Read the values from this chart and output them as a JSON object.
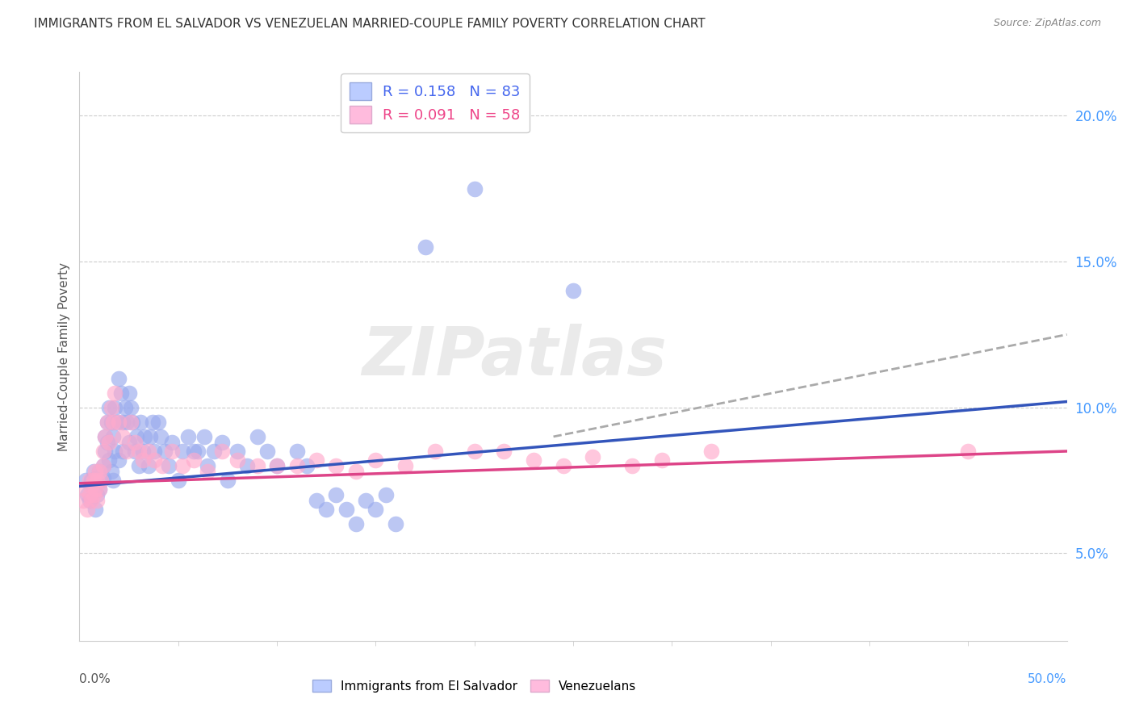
{
  "title": "IMMIGRANTS FROM EL SALVADOR VS VENEZUELAN MARRIED-COUPLE FAMILY POVERTY CORRELATION CHART",
  "source": "Source: ZipAtlas.com",
  "ylabel": "Married-Couple Family Poverty",
  "right_yticks": [
    "5.0%",
    "10.0%",
    "15.0%",
    "20.0%"
  ],
  "right_ytick_values": [
    0.05,
    0.1,
    0.15,
    0.2
  ],
  "xlim": [
    0.0,
    0.5
  ],
  "ylim": [
    0.02,
    0.215
  ],
  "legend_entries_top": [
    "R = 0.158   N = 83",
    "R = 0.091   N = 58"
  ],
  "legend_entries_bottom": [
    "Immigrants from El Salvador",
    "Venezuelans"
  ],
  "el_salvador_color": "#99aaee",
  "venezuelan_color": "#ffaacc",
  "blue_line_color": "#3355bb",
  "pink_line_color": "#dd4488",
  "dashed_color": "#aaaaaa",
  "watermark": "ZIPatlas",
  "blue_trend": [
    0.0,
    0.073,
    0.5,
    0.102
  ],
  "pink_trend": [
    0.0,
    0.074,
    0.5,
    0.085
  ],
  "dashed_trend": [
    0.24,
    0.09,
    0.5,
    0.125
  ],
  "es_x": [
    0.003,
    0.004,
    0.005,
    0.006,
    0.007,
    0.007,
    0.008,
    0.008,
    0.009,
    0.009,
    0.01,
    0.01,
    0.011,
    0.012,
    0.012,
    0.013,
    0.013,
    0.014,
    0.014,
    0.015,
    0.015,
    0.016,
    0.016,
    0.017,
    0.017,
    0.018,
    0.018,
    0.019,
    0.02,
    0.02,
    0.021,
    0.022,
    0.022,
    0.023,
    0.024,
    0.025,
    0.025,
    0.026,
    0.027,
    0.028,
    0.029,
    0.03,
    0.031,
    0.032,
    0.033,
    0.035,
    0.036,
    0.037,
    0.038,
    0.04,
    0.041,
    0.043,
    0.045,
    0.047,
    0.05,
    0.052,
    0.055,
    0.058,
    0.06,
    0.063,
    0.065,
    0.068,
    0.072,
    0.075,
    0.08,
    0.085,
    0.09,
    0.095,
    0.1,
    0.11,
    0.115,
    0.12,
    0.125,
    0.13,
    0.135,
    0.14,
    0.145,
    0.15,
    0.155,
    0.16,
    0.175,
    0.2,
    0.25
  ],
  "es_y": [
    0.075,
    0.07,
    0.068,
    0.075,
    0.072,
    0.078,
    0.065,
    0.073,
    0.07,
    0.076,
    0.072,
    0.078,
    0.075,
    0.08,
    0.076,
    0.085,
    0.09,
    0.088,
    0.095,
    0.082,
    0.1,
    0.078,
    0.095,
    0.075,
    0.09,
    0.085,
    0.1,
    0.095,
    0.082,
    0.11,
    0.105,
    0.085,
    0.095,
    0.1,
    0.095,
    0.088,
    0.105,
    0.1,
    0.095,
    0.085,
    0.09,
    0.08,
    0.095,
    0.085,
    0.09,
    0.08,
    0.09,
    0.095,
    0.085,
    0.095,
    0.09,
    0.085,
    0.08,
    0.088,
    0.075,
    0.085,
    0.09,
    0.085,
    0.085,
    0.09,
    0.08,
    0.085,
    0.088,
    0.075,
    0.085,
    0.08,
    0.09,
    0.085,
    0.08,
    0.085,
    0.08,
    0.068,
    0.065,
    0.07,
    0.065,
    0.06,
    0.068,
    0.065,
    0.07,
    0.06,
    0.155,
    0.175,
    0.14
  ],
  "vz_x": [
    0.002,
    0.003,
    0.004,
    0.005,
    0.005,
    0.006,
    0.006,
    0.007,
    0.007,
    0.008,
    0.008,
    0.009,
    0.009,
    0.01,
    0.01,
    0.011,
    0.012,
    0.012,
    0.013,
    0.014,
    0.015,
    0.016,
    0.017,
    0.018,
    0.02,
    0.022,
    0.024,
    0.026,
    0.028,
    0.03,
    0.032,
    0.035,
    0.038,
    0.042,
    0.047,
    0.052,
    0.058,
    0.065,
    0.072,
    0.08,
    0.09,
    0.1,
    0.11,
    0.12,
    0.13,
    0.14,
    0.15,
    0.165,
    0.18,
    0.2,
    0.215,
    0.23,
    0.245,
    0.26,
    0.28,
    0.295,
    0.32,
    0.45
  ],
  "vz_y": [
    0.068,
    0.072,
    0.065,
    0.07,
    0.075,
    0.068,
    0.073,
    0.07,
    0.075,
    0.072,
    0.078,
    0.068,
    0.075,
    0.072,
    0.078,
    0.075,
    0.08,
    0.085,
    0.09,
    0.095,
    0.088,
    0.1,
    0.095,
    0.105,
    0.095,
    0.09,
    0.085,
    0.095,
    0.088,
    0.085,
    0.082,
    0.085,
    0.082,
    0.08,
    0.085,
    0.08,
    0.082,
    0.078,
    0.085,
    0.082,
    0.08,
    0.08,
    0.08,
    0.082,
    0.08,
    0.078,
    0.082,
    0.08,
    0.085,
    0.085,
    0.085,
    0.082,
    0.08,
    0.083,
    0.08,
    0.082,
    0.085,
    0.085
  ]
}
